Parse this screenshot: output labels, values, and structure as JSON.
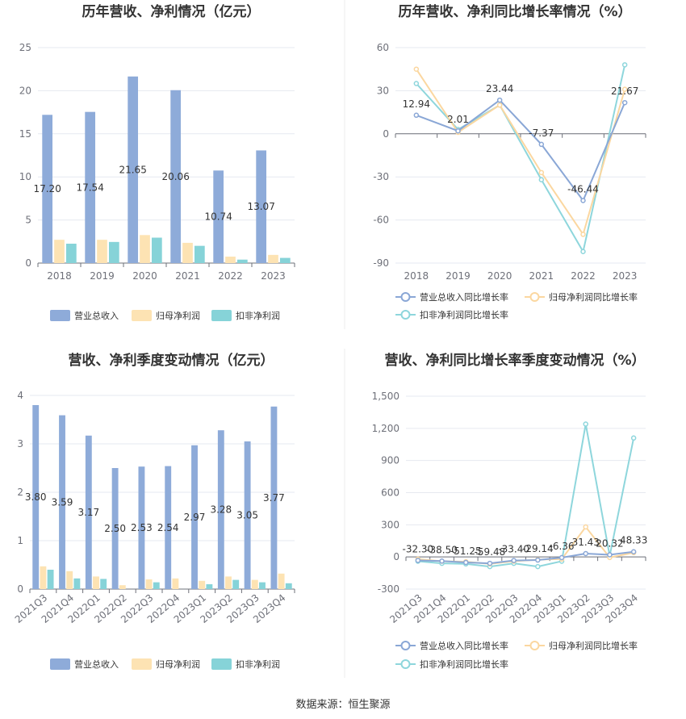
{
  "source": "数据来源：恒生聚源",
  "colors": {
    "revenue": "#8eabd9",
    "net_profit": "#fde3b3",
    "deducted_profit": "#86d3d8",
    "revenue_line": "#8aa7d6",
    "net_line": "#fbd7a0",
    "deducted_line": "#8ed6dc"
  },
  "chart_data": [
    {
      "type": "bar",
      "title": "历年营收、净利情况（亿元）",
      "categories": [
        "2018",
        "2019",
        "2020",
        "2021",
        "2022",
        "2023"
      ],
      "ylim": [
        0,
        25
      ],
      "yticks": [
        "0",
        "5",
        "10",
        "15",
        "20",
        "25"
      ],
      "series": [
        {
          "name": "营业总收入",
          "values": [
            17.2,
            17.54,
            21.65,
            20.06,
            10.74,
            13.07
          ],
          "labels": [
            "17.20",
            "17.54",
            "21.65",
            "20.06",
            "10.74",
            "13.07"
          ]
        },
        {
          "name": "归母净利润",
          "values": [
            2.7,
            2.7,
            3.25,
            2.35,
            0.75,
            0.95
          ]
        },
        {
          "name": "扣非净利润",
          "values": [
            2.25,
            2.45,
            2.95,
            2.0,
            0.4,
            0.6
          ]
        }
      ],
      "legend": "bottom"
    },
    {
      "type": "line",
      "title": "历年营收、净利同比增长率情况（%）",
      "categories": [
        "2018",
        "2019",
        "2020",
        "2021",
        "2022",
        "2023"
      ],
      "ylim": [
        -90,
        60
      ],
      "yticks": [
        "-90",
        "-60",
        "-30",
        "0",
        "30",
        "60"
      ],
      "series": [
        {
          "name": "营业总收入同比增长率",
          "values": [
            12.94,
            2.01,
            23.44,
            -7.37,
            -46.44,
            21.67
          ],
          "labels": [
            "12.94",
            "2.01",
            "23.44",
            "-7.37",
            "-46.44",
            "21.67"
          ]
        },
        {
          "name": "归母净利润同比增长率",
          "values": [
            45,
            1,
            20,
            -27,
            -70,
            31
          ]
        },
        {
          "name": "扣非净利润同比增长率",
          "values": [
            35,
            3,
            20,
            -32,
            -82,
            48
          ]
        }
      ],
      "legend": "bottom"
    },
    {
      "type": "bar",
      "title": "营收、净利季度变动情况（亿元）",
      "categories": [
        "2021Q3",
        "2021Q4",
        "2022Q1",
        "2022Q2",
        "2022Q3",
        "2022Q4",
        "2023Q1",
        "2023Q2",
        "2023Q3",
        "2023Q4"
      ],
      "ylim": [
        0,
        4
      ],
      "yticks": [
        "0",
        "1",
        "2",
        "3",
        "4"
      ],
      "series": [
        {
          "name": "营业总收入",
          "values": [
            3.8,
            3.59,
            3.17,
            2.5,
            2.53,
            2.54,
            2.97,
            3.28,
            3.05,
            3.77
          ],
          "labels": [
            "3.80",
            "3.59",
            "3.17",
            "2.50",
            "2.53",
            "2.54",
            "2.97",
            "3.28",
            "3.05",
            "3.77"
          ]
        },
        {
          "name": "归母净利润",
          "values": [
            0.47,
            0.37,
            0.26,
            0.08,
            0.2,
            0.22,
            0.17,
            0.26,
            0.19,
            0.32
          ]
        },
        {
          "name": "扣非净利润",
          "values": [
            0.4,
            0.22,
            0.21,
            0,
            0.14,
            0,
            0.1,
            0.19,
            0.14,
            0.12
          ]
        }
      ],
      "legend": "bottom"
    },
    {
      "type": "line",
      "title": "营收、净利同比增长率季度变动情况（%）",
      "categories": [
        "2021Q3",
        "2021Q4",
        "2022Q1",
        "2022Q2",
        "2022Q3",
        "2022Q4",
        "2023Q1",
        "2023Q2",
        "2023Q3",
        "2023Q4"
      ],
      "ylim": [
        -300,
        1500
      ],
      "yticks": [
        "-300",
        "0",
        "300",
        "600",
        "900",
        "1,200",
        "1,500"
      ],
      "series": [
        {
          "name": "营业总收入同比增长率",
          "values": [
            -32.3,
            -38.5,
            -51.25,
            -59.48,
            -33.4,
            -29.14,
            -6.36,
            31.43,
            20.32,
            48.33
          ],
          "labels": [
            "-32.30",
            "-38.50",
            "-51.25",
            "-59.48",
            "-33.40",
            "-29.14",
            "-6.36",
            "31.43",
            "20.32",
            "48.33"
          ]
        },
        {
          "name": "归母净利润同比增长率",
          "values": [
            -20,
            -40,
            -45,
            -65,
            -40,
            -25,
            -20,
            280,
            -5,
            40
          ]
        },
        {
          "name": "扣非净利润同比增长率",
          "values": [
            -40,
            -60,
            -65,
            -90,
            -60,
            -90,
            -40,
            1240,
            10,
            1110
          ]
        }
      ],
      "legend": "bottom"
    }
  ]
}
